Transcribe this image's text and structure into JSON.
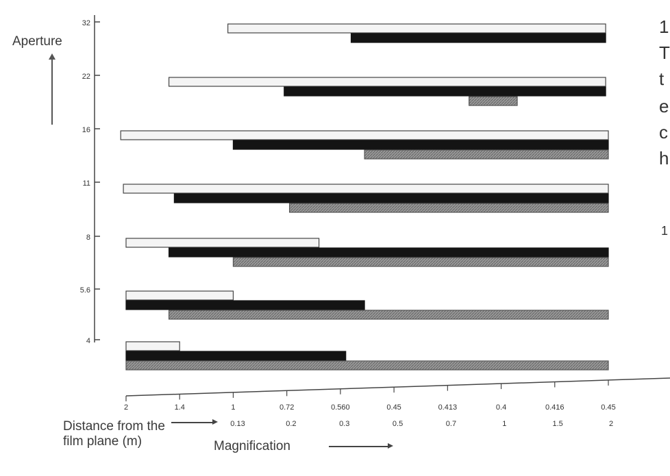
{
  "chart_data": {
    "type": "bar",
    "ylabel": "Aperture",
    "categories": [
      "4",
      "5.6",
      "8",
      "11",
      "16",
      "22",
      "32"
    ],
    "x_tick_labels_distance": [
      "2",
      "1.4",
      "1",
      "0.72",
      "0.560",
      "0.45",
      "0.413",
      "0.4",
      "0.416",
      "0.45"
    ],
    "x_tick_labels_magnification": [
      "0.13",
      "0.2",
      "0.3",
      "0.5",
      "0.7",
      "1",
      "1.5",
      "2"
    ],
    "distance_label": "Distance from the film plane (m)",
    "magnification_label": "Magnification",
    "series": [
      {
        "style": "white",
        "color": "#f2f2f2",
        "ranges": [
          [
            0,
            1
          ],
          [
            0,
            2
          ],
          [
            0,
            3.6
          ],
          [
            -0.05,
            9
          ],
          [
            -0.1,
            9
          ],
          [
            0.8,
            8.95
          ],
          [
            1.9,
            8.95
          ]
        ]
      },
      {
        "style": "black",
        "color": "#161616",
        "ranges": [
          [
            0,
            4.1
          ],
          [
            0,
            4.45
          ],
          [
            0.8,
            9
          ],
          [
            0.9,
            9
          ],
          [
            2,
            9
          ],
          [
            2.95,
            8.95
          ],
          [
            4.2,
            8.95
          ]
        ]
      },
      {
        "style": "grey",
        "color": "#8a8a8a",
        "ranges": [
          [
            0,
            9
          ],
          [
            0.8,
            9
          ],
          [
            2,
            9
          ],
          [
            3.05,
            9
          ],
          [
            4.45,
            9
          ],
          [
            6.4,
            7.3
          ],
          null
        ]
      }
    ]
  },
  "side_text": [
    "1",
    "T",
    "t",
    "e",
    "c",
    "h",
    "1"
  ]
}
